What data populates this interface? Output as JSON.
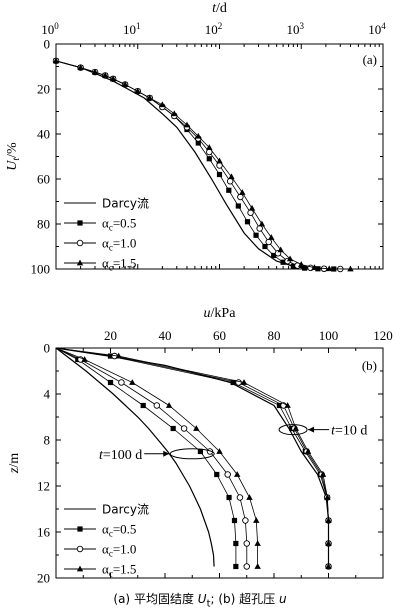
{
  "chart_data": [
    {
      "type": "line",
      "panel_label": "(a)",
      "x_axis": {
        "label": "t/d",
        "scale": "log",
        "range": [
          1,
          10000
        ],
        "ticks": [
          1,
          10,
          100,
          1000,
          10000
        ],
        "tick_labels": [
          [
            "10",
            "0"
          ],
          [
            "10",
            "1"
          ],
          [
            "10",
            "2"
          ],
          [
            "10",
            "3"
          ],
          [
            "10",
            "4"
          ]
        ],
        "position": "top"
      },
      "y_axis": {
        "label": "U_t/%",
        "range": [
          0,
          100
        ],
        "reversed": true,
        "ticks": [
          0,
          20,
          40,
          60,
          80,
          100
        ],
        "tick_labels": [
          "0",
          "20",
          "40",
          "60",
          "80",
          "100"
        ]
      },
      "legend": {
        "placement": "bottom-left",
        "entries": [
          {
            "text": "Darcy流",
            "marker": "line"
          },
          {
            "alpha": "α",
            "sub": "c",
            "text": "=0.5",
            "marker": "filled-square"
          },
          {
            "alpha": "α",
            "sub": "c",
            "text": "=1.0",
            "marker": "open-circle"
          },
          {
            "alpha": "α",
            "sub": "c",
            "text": "=1.5",
            "marker": "filled-triangle"
          }
        ]
      },
      "series": [
        {
          "key": "Darcy",
          "marker": "none",
          "x": [
            1,
            2,
            3,
            5,
            8,
            12,
            20,
            30,
            50,
            80,
            120,
            200,
            300,
            500,
            800,
            1200,
            2000
          ],
          "y": [
            7.5,
            10.5,
            13,
            16.5,
            20.5,
            24,
            31,
            37,
            48,
            60,
            71,
            84,
            91,
            96.5,
            98.8,
            99.6,
            100
          ]
        },
        {
          "key": "alpha_0.5",
          "marker": "filled-square",
          "x": [
            1,
            2,
            3,
            4,
            5,
            7,
            10,
            14,
            20,
            28,
            40,
            55,
            75,
            100,
            130,
            170,
            220,
            280,
            360,
            460,
            600,
            800,
            1100,
            1600,
            2500
          ],
          "y": [
            7.5,
            10.5,
            12.5,
            14,
            15.5,
            18,
            21,
            24,
            28,
            32,
            38,
            44,
            51,
            58,
            65,
            72,
            79,
            85,
            90,
            94,
            97,
            98.8,
            99.6,
            99.9,
            100
          ]
        },
        {
          "key": "alpha_1.0",
          "marker": "open-circle",
          "x": [
            1,
            2,
            3,
            4,
            5,
            7,
            10,
            14,
            20,
            28,
            40,
            55,
            75,
            100,
            135,
            180,
            240,
            310,
            400,
            520,
            680,
            900,
            1300,
            1900,
            3000
          ],
          "y": [
            7.5,
            10.5,
            12.5,
            14,
            15.5,
            18,
            21,
            24,
            28,
            32,
            37,
            42,
            48,
            54,
            61,
            68,
            75,
            82,
            88,
            93,
            96.5,
            98.5,
            99.5,
            99.9,
            100
          ]
        },
        {
          "key": "alpha_1.5",
          "marker": "filled-triangle",
          "x": [
            1,
            2,
            3,
            4,
            5,
            7,
            10,
            14,
            20,
            28,
            40,
            55,
            75,
            100,
            140,
            190,
            250,
            330,
            430,
            560,
            730,
            1000,
            1450,
            2200,
            4000
          ],
          "y": [
            7.5,
            10.5,
            12.5,
            14,
            15.5,
            18,
            21,
            24,
            27,
            31,
            36,
            41,
            46,
            52,
            59,
            66,
            73,
            80,
            86,
            91.5,
            95.5,
            98,
            99.4,
            99.9,
            100
          ]
        }
      ]
    },
    {
      "type": "line",
      "panel_label": "(b)",
      "x_axis": {
        "label": "u/kPa",
        "range": [
          0,
          120
        ],
        "position": "top",
        "ticks": [
          0,
          20,
          40,
          60,
          80,
          100,
          120
        ],
        "tick_labels": [
          "0",
          "20",
          "40",
          "60",
          "80",
          "100",
          "120"
        ]
      },
      "y_axis": {
        "label": "z/m",
        "range": [
          0,
          20
        ],
        "reversed": true,
        "ticks": [
          0,
          4,
          8,
          12,
          16,
          20
        ],
        "tick_labels": [
          "0",
          "4",
          "8",
          "12",
          "16",
          "20"
        ]
      },
      "legend": {
        "placement": "bottom-left",
        "entries": [
          {
            "text": "Darcy流",
            "marker": "line"
          },
          {
            "alpha": "α",
            "sub": "c",
            "text": "=0.5",
            "marker": "filled-square"
          },
          {
            "alpha": "α",
            "sub": "c",
            "text": "=1.0",
            "marker": "open-circle"
          },
          {
            "alpha": "α",
            "sub": "c",
            "text": "=1.5",
            "marker": "filled-triangle"
          }
        ]
      },
      "annotations": [
        {
          "prefix": "t",
          "text": "=10 d",
          "ellipse_center": [
            87,
            7.1
          ],
          "arrow_dir": "left"
        },
        {
          "prefix": "t",
          "text": "=100 d",
          "ellipse_center": [
            50,
            9.2
          ],
          "arrow_dir": "right"
        }
      ],
      "series": [
        {
          "key": "Darcy_t10",
          "marker": "none",
          "time": "10 d",
          "z": [
            0,
            0.7,
            1.5,
            3,
            5,
            7,
            9,
            11,
            13,
            15,
            17,
            19
          ],
          "u": [
            0,
            19.5,
            40,
            64,
            80,
            85.5,
            90,
            96,
            99.2,
            100,
            100,
            100
          ]
        },
        {
          "key": "alpha_0.5_t10",
          "marker": "filled-square",
          "time": "10 d",
          "z": [
            0,
            0.7,
            3,
            5,
            7,
            9,
            11,
            13,
            15,
            17,
            19
          ],
          "u": [
            0,
            20,
            65,
            82,
            86.5,
            91.5,
            97,
            99.5,
            100,
            100,
            100
          ]
        },
        {
          "key": "alpha_1.0_t10",
          "marker": "open-circle",
          "time": "10 d",
          "z": [
            0,
            0.7,
            3,
            5,
            7,
            9,
            11,
            13,
            15,
            17,
            19
          ],
          "u": [
            0,
            21.5,
            67,
            83.5,
            87.5,
            92,
            97.5,
            99.5,
            100,
            100,
            100
          ]
        },
        {
          "key": "alpha_1.5_t10",
          "marker": "filled-triangle",
          "time": "10 d",
          "z": [
            0,
            0.7,
            3,
            5,
            7,
            9,
            11,
            13,
            15,
            17,
            19
          ],
          "u": [
            0,
            23,
            69,
            85,
            88,
            92.5,
            98,
            99.6,
            100,
            100,
            100
          ]
        },
        {
          "key": "Darcy_t100",
          "marker": "none",
          "time": "100 d",
          "z": [
            0,
            1,
            2,
            3,
            4,
            5,
            6,
            7,
            8,
            9,
            10,
            11,
            12,
            13,
            14,
            15,
            16,
            17,
            18,
            19
          ],
          "u": [
            0,
            5.5,
            11,
            16,
            21,
            25.5,
            30,
            34,
            37.5,
            41,
            44,
            46.5,
            49,
            51,
            53,
            54.5,
            56,
            57,
            57.8,
            58
          ]
        },
        {
          "key": "alpha_0.5_t100",
          "marker": "filled-square",
          "time": "100 d",
          "z": [
            0,
            1,
            3,
            5,
            7,
            9,
            11,
            13,
            15,
            17,
            19
          ],
          "u": [
            0,
            8,
            20,
            32,
            43,
            53,
            59,
            63.5,
            65.5,
            66,
            66
          ]
        },
        {
          "key": "alpha_1.0_t100",
          "marker": "open-circle",
          "time": "100 d",
          "z": [
            0,
            1,
            3,
            5,
            7,
            9,
            11,
            13,
            15,
            17,
            19
          ],
          "u": [
            0,
            9,
            24,
            37,
            47,
            56.5,
            63,
            67.5,
            69.5,
            70,
            70
          ]
        },
        {
          "key": "alpha_1.5_t100",
          "marker": "filled-triangle",
          "time": "100 d",
          "z": [
            0,
            1,
            3,
            5,
            7,
            9,
            11,
            13,
            15,
            17,
            19
          ],
          "u": [
            0,
            10.5,
            28,
            41.5,
            51.5,
            60,
            66.5,
            71,
            73.5,
            74,
            74
          ]
        }
      ]
    }
  ],
  "caption": {
    "a_label": "(a)",
    "a_text": "平均固结度 ",
    "a_var": "U",
    "a_sub": "t",
    "sep": "; ",
    "b_label": "(b)",
    "b_text": "超孔压 ",
    "b_var": "u"
  }
}
